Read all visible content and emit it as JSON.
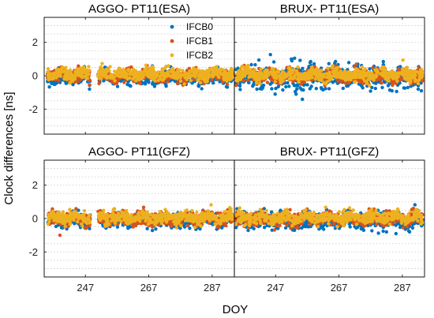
{
  "chart_data": [
    {
      "id": "aggo_esa",
      "type": "scatter",
      "title": "AGGO- PT11(ESA)",
      "xlim": [
        234,
        294
      ],
      "ylim": [
        -3.5,
        3.5
      ],
      "xticks": [
        247,
        267,
        287
      ],
      "yticks": [
        -2,
        0,
        2
      ],
      "xticklabels_visible": false,
      "yticklabels_visible": true,
      "segments": [
        [
          235,
          248.5
        ],
        [
          251,
          293.5
        ]
      ],
      "stats": {
        "IFCB0": {
          "mean": -0.15,
          "sd": 0.2
        },
        "IFCB1": {
          "mean": 0.0,
          "sd": 0.18
        },
        "IFCB2": {
          "mean": 0.1,
          "sd": 0.18
        }
      },
      "outliers": [
        {
          "x": 248.3,
          "y": -0.8,
          "series": "IFCB0"
        },
        {
          "x": 248.3,
          "y": -0.55,
          "series": "IFCB1"
        }
      ]
    },
    {
      "id": "brux_esa",
      "type": "scatter",
      "title": "BRUX- PT11(ESA)",
      "xlim": [
        234,
        294
      ],
      "ylim": [
        -3.5,
        3.5
      ],
      "xticks": [
        247,
        267,
        287
      ],
      "yticks": [
        -2,
        0,
        2
      ],
      "xticklabels_visible": false,
      "yticklabels_visible": false,
      "segments": [
        [
          234.5,
          293.5
        ]
      ],
      "stats": {
        "IFCB0": {
          "mean": -0.1,
          "sd": 0.35
        },
        "IFCB1": {
          "mean": 0.0,
          "sd": 0.2
        },
        "IFCB2": {
          "mean": 0.05,
          "sd": 0.18
        }
      },
      "outliers": [
        {
          "x": 252,
          "y": 1.0,
          "series": "IFCB0"
        },
        {
          "x": 253,
          "y": 1.05,
          "series": "IFCB0"
        },
        {
          "x": 281,
          "y": 0.85,
          "series": "IFCB0"
        },
        {
          "x": 292,
          "y": -0.8,
          "series": "IFCB0"
        },
        {
          "x": 293,
          "y": -0.9,
          "series": "IFCB0"
        }
      ]
    },
    {
      "id": "aggo_gfz",
      "type": "scatter",
      "title": "AGGO- PT11(GFZ)",
      "xlim": [
        234,
        294
      ],
      "ylim": [
        -3.5,
        3.5
      ],
      "xticks": [
        247,
        267,
        287
      ],
      "yticks": [
        -2,
        0,
        2
      ],
      "xticklabels_visible": true,
      "yticklabels_visible": true,
      "segments": [
        [
          235,
          248.5
        ],
        [
          251,
          293.5
        ]
      ],
      "stats": {
        "IFCB0": {
          "mean": -0.1,
          "sd": 0.2
        },
        "IFCB1": {
          "mean": 0.0,
          "sd": 0.2
        },
        "IFCB2": {
          "mean": 0.05,
          "sd": 0.18
        }
      },
      "outliers": [
        {
          "x": 248.3,
          "y": -0.6,
          "series": "IFCB0"
        }
      ]
    },
    {
      "id": "brux_gfz",
      "type": "scatter",
      "title": "BRUX- PT11(GFZ)",
      "xlim": [
        234,
        294
      ],
      "ylim": [
        -3.5,
        3.5
      ],
      "xticks": [
        247,
        267,
        287
      ],
      "yticks": [
        -2,
        0,
        2
      ],
      "xticklabels_visible": true,
      "yticklabels_visible": false,
      "segments": [
        [
          234.5,
          293.5
        ]
      ],
      "stats": {
        "IFCB0": {
          "mean": -0.1,
          "sd": 0.25
        },
        "IFCB1": {
          "mean": 0.0,
          "sd": 0.2
        },
        "IFCB2": {
          "mean": 0.05,
          "sd": 0.17
        }
      },
      "outliers": [
        {
          "x": 282,
          "y": -0.8,
          "series": "IFCB0"
        },
        {
          "x": 285,
          "y": -0.9,
          "series": "IFCB0"
        },
        {
          "x": 290,
          "y": 0.55,
          "series": "IFCB1"
        }
      ]
    }
  ],
  "series": [
    {
      "name": "IFCB0",
      "color": "#0072BD"
    },
    {
      "name": "IFCB1",
      "color": "#D95319"
    },
    {
      "name": "IFCB2",
      "color": "#EDB120"
    }
  ],
  "legend": {
    "location": "north-west of top-left panel",
    "entries": [
      "IFCB0",
      "IFCB1",
      "IFCB2"
    ]
  },
  "xlabel": "DOY",
  "ylabel": "Clock differences [ns]",
  "grid": "horizontal dotted"
}
